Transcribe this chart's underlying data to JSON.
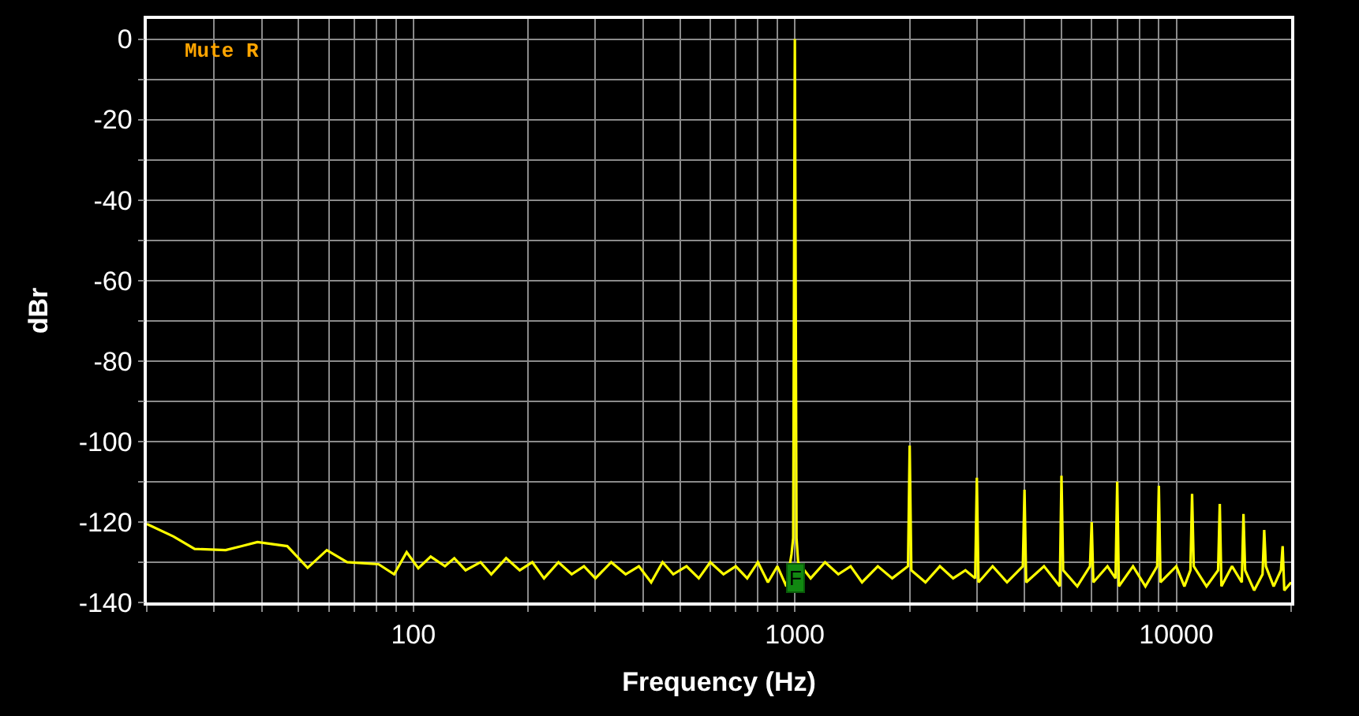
{
  "chart_data": {
    "type": "line",
    "xlabel": "Frequency (Hz)",
    "ylabel": "dBr",
    "log": "x",
    "grid": true,
    "annotations": [
      "Mute R",
      {
        "text": "F",
        "x": 1000,
        "y": -134
      }
    ],
    "xlim": [
      20,
      20000
    ],
    "ylim": [
      -140,
      5
    ],
    "xticks": [
      {
        "value": 20,
        "label": null
      },
      {
        "value": 30,
        "label": null
      },
      {
        "value": 40,
        "label": null
      },
      {
        "value": 50,
        "label": null
      },
      {
        "value": 60,
        "label": null
      },
      {
        "value": 70,
        "label": null
      },
      {
        "value": 80,
        "label": null
      },
      {
        "value": 90,
        "label": null
      },
      100,
      {
        "value": 200,
        "label": null
      },
      {
        "value": 300,
        "label": null
      },
      {
        "value": 400,
        "label": null
      },
      {
        "value": 500,
        "label": null
      },
      {
        "value": 600,
        "label": null
      },
      {
        "value": 700,
        "label": null
      },
      {
        "value": 800,
        "label": null
      },
      {
        "value": 900,
        "label": null
      },
      1000,
      {
        "value": 2000,
        "label": null
      },
      {
        "value": 3000,
        "label": null
      },
      {
        "value": 4000,
        "label": null
      },
      {
        "value": 5000,
        "label": null
      },
      {
        "value": 6000,
        "label": null
      },
      {
        "value": 7000,
        "label": null
      },
      {
        "value": 8000,
        "label": null
      },
      {
        "value": 9000,
        "label": null
      },
      10000,
      {
        "value": 20000,
        "label": null
      }
    ],
    "yticks": [
      -140,
      {
        "value": -130,
        "label": null
      },
      -120,
      {
        "value": -110,
        "label": null
      },
      -100,
      {
        "value": -90,
        "label": null
      },
      -80,
      {
        "value": -70,
        "label": null
      },
      -60,
      {
        "value": -50,
        "label": null
      },
      -40,
      {
        "value": -30,
        "label": null
      },
      -20,
      {
        "value": -10,
        "label": null
      },
      0
    ],
    "series": [
      {
        "color": "#ffff00",
        "marker": "none",
        "line_style": "solid",
        "x": [
          20,
          23.5,
          26.7,
          32.2,
          35.5,
          39,
          46.7,
          52.8,
          59.3,
          67,
          81,
          89,
          96,
          103,
          111,
          121,
          128,
          137,
          150,
          160,
          175,
          190,
          205,
          220,
          240,
          260,
          280,
          300,
          330,
          360,
          390,
          420,
          450,
          480,
          520,
          560,
          600,
          650,
          700,
          750,
          800,
          850,
          900,
          950,
          980,
          990,
          1000,
          1010,
          1020,
          1100,
          1200,
          1300,
          1400,
          1500,
          1650,
          1800,
          1980,
          2000,
          2020,
          2200,
          2400,
          2600,
          2800,
          2970,
          3000,
          3030,
          3300,
          3600,
          3960,
          4000,
          4040,
          4500,
          4950,
          5000,
          5050,
          5500,
          5940,
          6000,
          6060,
          6600,
          6930,
          7000,
          7070,
          7700,
          8300,
          8910,
          9000,
          9090,
          10000,
          10500,
          10890,
          11000,
          11110,
          12000,
          12870,
          13000,
          13130,
          14000,
          14850,
          15000,
          15150,
          16000,
          16830,
          17000,
          17170,
          18000,
          18810,
          19000,
          19190,
          20000
        ],
        "values": [
          -120.5,
          -123.6,
          -126.7,
          -127,
          -126,
          -125,
          -126,
          -131.4,
          -127,
          -130,
          -130.5,
          -133,
          -127.5,
          -131.5,
          -128.6,
          -131,
          -129,
          -132,
          -130,
          -133,
          -129,
          -132,
          -130,
          -134,
          -130,
          -133,
          -131,
          -134,
          -130,
          -133,
          -131,
          -135,
          -130,
          -133,
          -131,
          -134,
          -130,
          -133,
          -131,
          -134,
          -130,
          -135,
          -131,
          -136,
          -128,
          -124,
          0,
          -124,
          -130,
          -134,
          -130,
          -133,
          -131,
          -135,
          -131,
          -134,
          -131,
          -101,
          -132,
          -135,
          -131,
          -134,
          -132,
          -134,
          -109,
          -135,
          -131,
          -135,
          -131,
          -112,
          -135,
          -131,
          -136,
          -108.5,
          -132,
          -136,
          -131,
          -120,
          -135,
          -131,
          -134,
          -110,
          -136,
          -131,
          -136,
          -131,
          -111,
          -135,
          -131,
          -136,
          -132,
          -113,
          -131,
          -136,
          -132,
          -115.5,
          -136,
          -131,
          -135,
          -118,
          -132,
          -137,
          -133,
          -122,
          -131,
          -136,
          -132,
          -126,
          -137,
          -135
        ]
      }
    ]
  }
}
